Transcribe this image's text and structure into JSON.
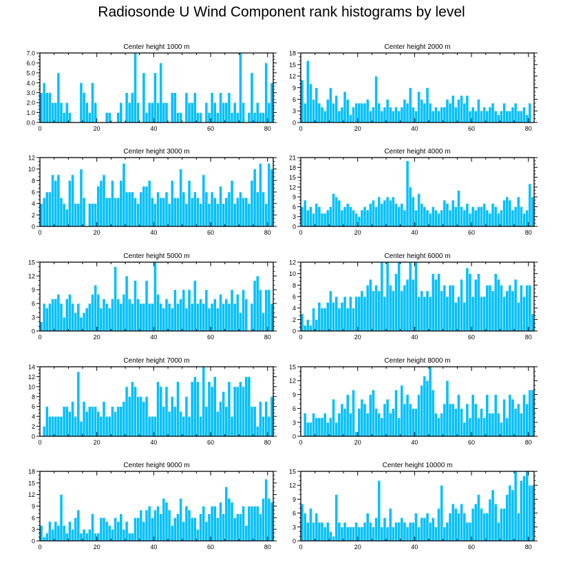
{
  "title": "Radiosonde U Wind Component rank histograms by level",
  "bar_color": "#00BFFF",
  "bar_edge_color": "#FFFFFF",
  "chart_data": [
    {
      "type": "bar",
      "title": "Center height 1000 m",
      "xlim": [
        0,
        82
      ],
      "ylim": [
        0,
        7
      ],
      "xticks": [
        0,
        20,
        40,
        60,
        80
      ],
      "yticks": [
        "0.0",
        "1.0",
        "2.0",
        "3.0",
        "4.0",
        "5.0",
        "6.0",
        "7.0"
      ],
      "values": [
        3,
        4,
        3,
        3,
        2,
        2,
        5,
        2,
        1,
        2,
        1,
        0,
        0,
        0,
        4,
        3,
        2,
        1,
        4,
        2,
        0,
        0,
        0,
        1,
        1,
        0,
        0,
        1,
        2,
        0,
        3,
        2,
        3,
        7,
        2,
        0,
        5,
        1,
        2,
        2,
        5,
        2,
        6,
        2,
        2,
        0,
        3,
        3,
        1,
        1,
        0,
        3,
        2,
        2,
        3,
        1,
        1,
        0,
        2,
        1,
        3,
        2,
        1,
        3,
        2,
        2,
        3,
        1,
        2,
        1,
        7,
        2,
        0,
        1,
        5,
        1,
        2,
        1,
        1,
        6,
        2,
        4
      ]
    },
    {
      "type": "bar",
      "title": "Center height 2000 m",
      "xlim": [
        0,
        82
      ],
      "ylim": [
        0,
        18
      ],
      "xticks": [
        0,
        20,
        40,
        60,
        80
      ],
      "yticks": [
        "0",
        "3",
        "6",
        "9",
        "12",
        "15",
        "18"
      ],
      "values": [
        11,
        5,
        16,
        10,
        6,
        9,
        5,
        4,
        3,
        6,
        9,
        5,
        7,
        3,
        4,
        8,
        6,
        2,
        4,
        5,
        5,
        5,
        5,
        6,
        3,
        4,
        12,
        5,
        3,
        4,
        6,
        4,
        3,
        4,
        3,
        4,
        6,
        5,
        9,
        4,
        3,
        8,
        6,
        5,
        9,
        5,
        3,
        4,
        3,
        4,
        4,
        6,
        5,
        7,
        4,
        6,
        7,
        5,
        7,
        3,
        4,
        3,
        6,
        3,
        4,
        3,
        4,
        5,
        3,
        2,
        3,
        5,
        3,
        3,
        4,
        5,
        3,
        3,
        4,
        2,
        5
      ]
    },
    {
      "type": "bar",
      "title": "Center height 3000 m",
      "xlim": [
        0,
        82
      ],
      "ylim": [
        0,
        12
      ],
      "xticks": [
        0,
        20,
        40,
        60,
        80
      ],
      "yticks": [
        "0",
        "2",
        "4",
        "6",
        "8",
        "10",
        "12"
      ],
      "values": [
        4,
        5,
        6,
        6,
        9,
        8,
        9,
        5,
        4,
        3,
        8,
        9,
        4,
        4,
        10,
        5,
        0,
        4,
        4,
        4,
        7,
        8,
        9,
        5,
        5,
        8,
        5,
        5,
        8,
        11,
        6,
        6,
        6,
        5,
        4,
        6,
        7,
        7,
        8,
        5,
        4,
        6,
        5,
        5,
        6,
        4,
        8,
        5,
        5,
        10,
        6,
        4,
        8,
        5,
        6,
        5,
        4,
        9,
        6,
        4,
        6,
        5,
        4,
        7,
        4,
        5,
        6,
        8,
        4,
        5,
        6,
        5,
        5,
        4,
        8,
        10,
        6,
        11,
        6,
        4,
        11,
        10
      ]
    },
    {
      "type": "bar",
      "title": "Center height 4000 m",
      "xlim": [
        0,
        82
      ],
      "ylim": [
        0,
        21
      ],
      "xticks": [
        0,
        20,
        40,
        60,
        80
      ],
      "yticks": [
        "0",
        "3",
        "6",
        "9",
        "12",
        "15",
        "18",
        "21"
      ],
      "values": [
        6,
        8,
        5,
        6,
        4,
        7,
        6,
        4,
        4,
        5,
        6,
        10,
        9,
        8,
        5,
        6,
        7,
        6,
        5,
        4,
        3,
        5,
        6,
        5,
        7,
        8,
        6,
        9,
        7,
        8,
        9,
        8,
        9,
        7,
        6,
        7,
        5,
        20,
        12,
        9,
        5,
        10,
        7,
        6,
        5,
        4,
        6,
        5,
        4,
        5,
        8,
        7,
        5,
        8,
        6,
        11,
        6,
        5,
        7,
        4,
        6,
        5,
        6,
        6,
        7,
        5,
        4,
        7,
        6,
        4,
        5,
        8,
        9,
        8,
        5,
        6,
        9,
        6,
        4,
        5,
        13,
        9
      ]
    },
    {
      "type": "bar",
      "title": "Center height 5000 m",
      "xlim": [
        0,
        82
      ],
      "ylim": [
        0,
        15
      ],
      "xticks": [
        0,
        20,
        40,
        60,
        80
      ],
      "yticks": [
        "0",
        "3",
        "6",
        "9",
        "12",
        "15"
      ],
      "values": [
        2,
        6,
        5,
        6,
        7,
        7,
        8,
        6,
        3,
        7,
        8,
        6,
        4,
        6,
        3,
        4,
        5,
        6,
        8,
        10,
        8,
        5,
        7,
        6,
        5,
        7,
        14,
        7,
        6,
        8,
        12,
        7,
        6,
        11,
        7,
        6,
        6,
        11,
        6,
        6,
        15,
        8,
        6,
        5,
        7,
        6,
        5,
        9,
        6,
        7,
        9,
        5,
        9,
        6,
        11,
        6,
        7,
        6,
        9,
        5,
        6,
        7,
        5,
        8,
        6,
        7,
        6,
        9,
        6,
        8,
        4,
        9,
        7,
        0,
        6,
        11,
        12,
        9,
        4,
        9,
        9,
        6
      ]
    },
    {
      "type": "bar",
      "title": "Center height 6000 m",
      "xlim": [
        0,
        82
      ],
      "ylim": [
        0,
        12
      ],
      "xticks": [
        0,
        20,
        40,
        60,
        80
      ],
      "yticks": [
        "0",
        "2",
        "4",
        "6",
        "8",
        "10",
        "12"
      ],
      "values": [
        3,
        1,
        2,
        1,
        4,
        2,
        5,
        4,
        4,
        5,
        7,
        5,
        6,
        4,
        5,
        6,
        4,
        6,
        4,
        6,
        6,
        7,
        6,
        8,
        9,
        7,
        8,
        7,
        12,
        6,
        12,
        8,
        7,
        10,
        12,
        7,
        8,
        9,
        12,
        9,
        12,
        6,
        7,
        6,
        7,
        6,
        10,
        9,
        10,
        7,
        8,
        6,
        8,
        8,
        5,
        6,
        9,
        5,
        11,
        10,
        6,
        9,
        10,
        6,
        6,
        8,
        8,
        7,
        10,
        9,
        8,
        6,
        7,
        8,
        7,
        9,
        5,
        8,
        6,
        8,
        8,
        3
      ]
    },
    {
      "type": "bar",
      "title": "Center height 7000 m",
      "xlim": [
        0,
        82
      ],
      "ylim": [
        0,
        14
      ],
      "xticks": [
        0,
        20,
        40,
        60,
        80
      ],
      "yticks": [
        "0",
        "2",
        "4",
        "6",
        "8",
        "10",
        "12",
        "14"
      ],
      "values": [
        0,
        2,
        6,
        4,
        4,
        4,
        4,
        4,
        6,
        6,
        5,
        7,
        4,
        13,
        3,
        7,
        5,
        6,
        6,
        6,
        5,
        4,
        7,
        4,
        4,
        6,
        5,
        6,
        6,
        7,
        10,
        8,
        11,
        10,
        8,
        8,
        7,
        8,
        4,
        4,
        4,
        11,
        10,
        6,
        10,
        5,
        8,
        6,
        11,
        5,
        4,
        8,
        4,
        11,
        12,
        11,
        4,
        14,
        6,
        11,
        10,
        12,
        5,
        7,
        9,
        6,
        11,
        4,
        10,
        10,
        11,
        10,
        12,
        12,
        6,
        6,
        2,
        7,
        4,
        7,
        4,
        8
      ]
    },
    {
      "type": "bar",
      "title": "Center height 8000 m",
      "xlim": [
        0,
        82
      ],
      "ylim": [
        0,
        15
      ],
      "xticks": [
        0,
        20,
        40,
        60,
        80
      ],
      "yticks": [
        "0",
        "3",
        "6",
        "9",
        "12",
        "15"
      ],
      "values": [
        0,
        5,
        3,
        3,
        5,
        4,
        4,
        4,
        5,
        3,
        4,
        8,
        3,
        5,
        7,
        6,
        9,
        5,
        10,
        1,
        6,
        8,
        7,
        5,
        9,
        10,
        6,
        5,
        4,
        7,
        8,
        5,
        6,
        10,
        4,
        11,
        7,
        9,
        7,
        6,
        6,
        9,
        11,
        13,
        12,
        15,
        10,
        5,
        4,
        5,
        7,
        12,
        7,
        7,
        6,
        9,
        6,
        3,
        7,
        4,
        9,
        7,
        4,
        6,
        4,
        9,
        5,
        5,
        9,
        5,
        3,
        8,
        4,
        9,
        8,
        6,
        7,
        5,
        9,
        7,
        10,
        10
      ]
    },
    {
      "type": "bar",
      "title": "Center height 9000 m",
      "xlim": [
        0,
        82
      ],
      "ylim": [
        0,
        18
      ],
      "xticks": [
        0,
        20,
        40,
        60,
        80
      ],
      "yticks": [
        "0",
        "3",
        "6",
        "9",
        "12",
        "15",
        "18"
      ],
      "values": [
        4,
        1,
        2,
        5,
        3,
        5,
        4,
        12,
        4,
        2,
        5,
        3,
        6,
        8,
        2,
        3,
        2,
        3,
        7,
        2,
        2,
        6,
        6,
        5,
        4,
        3,
        6,
        5,
        7,
        3,
        5,
        2,
        2,
        6,
        6,
        8,
        5,
        8,
        9,
        6,
        8,
        9,
        7,
        11,
        10,
        8,
        4,
        6,
        7,
        11,
        5,
        9,
        8,
        6,
        6,
        3,
        7,
        9,
        5,
        7,
        9,
        9,
        6,
        10,
        7,
        14,
        11,
        10,
        6,
        7,
        7,
        9,
        4,
        9,
        9,
        9,
        9,
        7,
        11,
        16,
        11,
        10
      ]
    },
    {
      "type": "bar",
      "title": "Center height 10000 m",
      "xlim": [
        0,
        82
      ],
      "ylim": [
        0,
        15
      ],
      "xticks": [
        0,
        20,
        40,
        60,
        80
      ],
      "yticks": [
        "0",
        "3",
        "6",
        "9",
        "12",
        "15"
      ],
      "values": [
        8,
        6,
        4,
        7,
        4,
        6,
        4,
        4,
        3,
        4,
        2,
        1,
        10,
        4,
        3,
        4,
        3,
        3,
        3,
        4,
        3,
        3,
        4,
        6,
        4,
        3,
        5,
        13,
        3,
        5,
        3,
        7,
        3,
        4,
        4,
        5,
        4,
        3,
        4,
        4,
        6,
        3,
        5,
        5,
        6,
        4,
        5,
        3,
        7,
        12,
        3,
        4,
        6,
        8,
        7,
        6,
        8,
        6,
        4,
        4,
        7,
        8,
        10,
        7,
        6,
        6,
        9,
        11,
        8,
        4,
        7,
        7,
        10,
        12,
        11,
        15,
        6,
        13,
        14,
        15,
        12,
        12
      ]
    }
  ]
}
